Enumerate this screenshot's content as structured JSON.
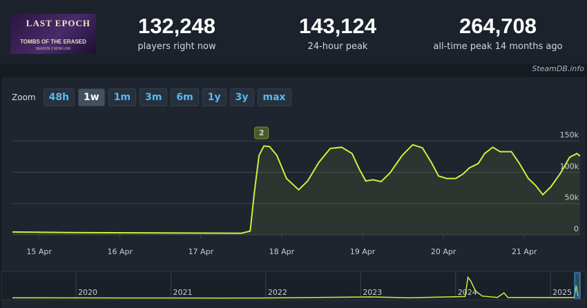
{
  "game_image": {
    "title": "LAST EPOCH",
    "subtitle": "TOMBS OF THE ERASED",
    "tagline": "SEASON 2 NOW LIVE"
  },
  "stats": [
    {
      "value": "132,248",
      "label": "players right now"
    },
    {
      "value": "143,124",
      "label": "24-hour peak"
    },
    {
      "value": "264,708",
      "label": "all-time peak 14 months ago"
    }
  ],
  "source": "SteamDB.info",
  "zoom": {
    "label": "Zoom",
    "buttons": [
      "48h",
      "1w",
      "1m",
      "3m",
      "6m",
      "1y",
      "3y",
      "max"
    ],
    "active": 1
  },
  "chart_data": [
    {
      "type": "area",
      "color": "#d4ef3c",
      "x": [
        14.67,
        15.37,
        16.48,
        17.5,
        17.61,
        17.66,
        17.72,
        17.78,
        17.85,
        17.94,
        18.06,
        18.21,
        18.32,
        18.46,
        18.6,
        18.74,
        18.87,
        18.96,
        19.04,
        19.13,
        19.23,
        19.34,
        19.49,
        19.62,
        19.74,
        19.85,
        19.94,
        20.04,
        20.15,
        20.24,
        20.32,
        20.43,
        20.51,
        20.61,
        20.7,
        20.84,
        20.94,
        21.05,
        21.14,
        21.23,
        21.33,
        21.45,
        21.56,
        21.65,
        21.69
      ],
      "values": [
        4500,
        3500,
        3000,
        2500,
        6000,
        66000,
        127000,
        142000,
        141000,
        127000,
        90000,
        72000,
        86000,
        116000,
        138000,
        140000,
        130000,
        105000,
        86000,
        88000,
        85000,
        99000,
        127000,
        144000,
        139000,
        116000,
        94000,
        90000,
        90000,
        97000,
        107000,
        114000,
        130000,
        140000,
        133000,
        133000,
        114000,
        90000,
        79000,
        64000,
        77000,
        99000,
        124000,
        130000,
        126000
      ],
      "xlim": [
        14.67,
        21.69
      ],
      "xticks": [
        {
          "value": 15,
          "label": "15 Apr"
        },
        {
          "value": 16,
          "label": "16 Apr"
        },
        {
          "value": 17,
          "label": "17 Apr"
        },
        {
          "value": 18,
          "label": "18 Apr"
        },
        {
          "value": 19,
          "label": "19 Apr"
        },
        {
          "value": 20,
          "label": "20 Apr"
        },
        {
          "value": 21,
          "label": "21 Apr"
        }
      ],
      "ylim": [
        0,
        180000
      ],
      "yticks": [
        0,
        {
          "value": 50000,
          "label": "50k"
        },
        {
          "value": 100000,
          "label": "100k"
        },
        {
          "value": 150000,
          "label": "150k"
        }
      ],
      "grid": true,
      "annotations": [
        {
          "x": 17.75,
          "label": "2"
        }
      ]
    },
    {
      "type": "line",
      "color": "#d4ef3c",
      "x": [
        2019.33,
        2020.5,
        2021.5,
        2022.0,
        2023.1,
        2023.25,
        2023.5,
        2024.1,
        2024.13,
        2024.16,
        2024.21,
        2024.28,
        2024.44,
        2024.51,
        2024.55,
        2024.95,
        2025.25,
        2025.27,
        2025.29
      ],
      "values": [
        5000,
        4000,
        3000,
        4000,
        15000,
        12000,
        5000,
        20000,
        230000,
        190000,
        80000,
        25000,
        10000,
        60000,
        10000,
        8000,
        8000,
        140000,
        20000
      ],
      "xlim": [
        2019.33,
        2025.37
      ],
      "xticks": [
        {
          "value": 2020,
          "label": "2020"
        },
        {
          "value": 2021,
          "label": "2021"
        },
        {
          "value": 2022,
          "label": "2022"
        },
        {
          "value": 2023,
          "label": "2023"
        },
        {
          "value": 2024,
          "label": "2024"
        },
        {
          "value": 2025,
          "label": "2025"
        }
      ],
      "ylim": [
        0,
        280000
      ]
    }
  ]
}
